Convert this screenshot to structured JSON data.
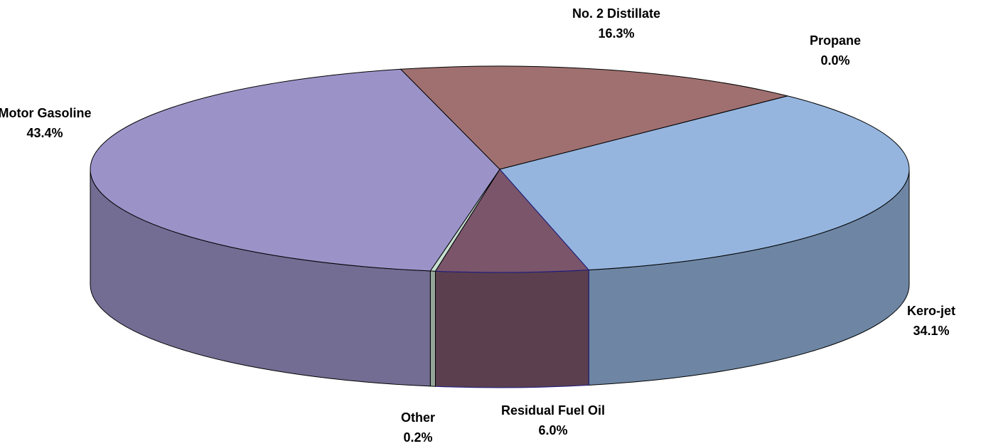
{
  "chart_data": {
    "type": "pie",
    "categories": [
      "No. 2 Distillate",
      "Propane",
      "Kero-jet",
      "Residual Fuel Oil",
      "Other",
      "Motor Gasoline"
    ],
    "values": [
      16.3,
      0.0,
      34.1,
      6.0,
      0.2,
      43.4
    ],
    "value_labels": [
      "16.3%",
      "0.0%",
      "34.1%",
      "6.0%",
      "0.2%",
      "43.4%"
    ],
    "colors": [
      "#a07070",
      "#8fb48f",
      "#95b5de",
      "#7b5569",
      "#c8e0d0",
      "#9b93c8"
    ]
  }
}
